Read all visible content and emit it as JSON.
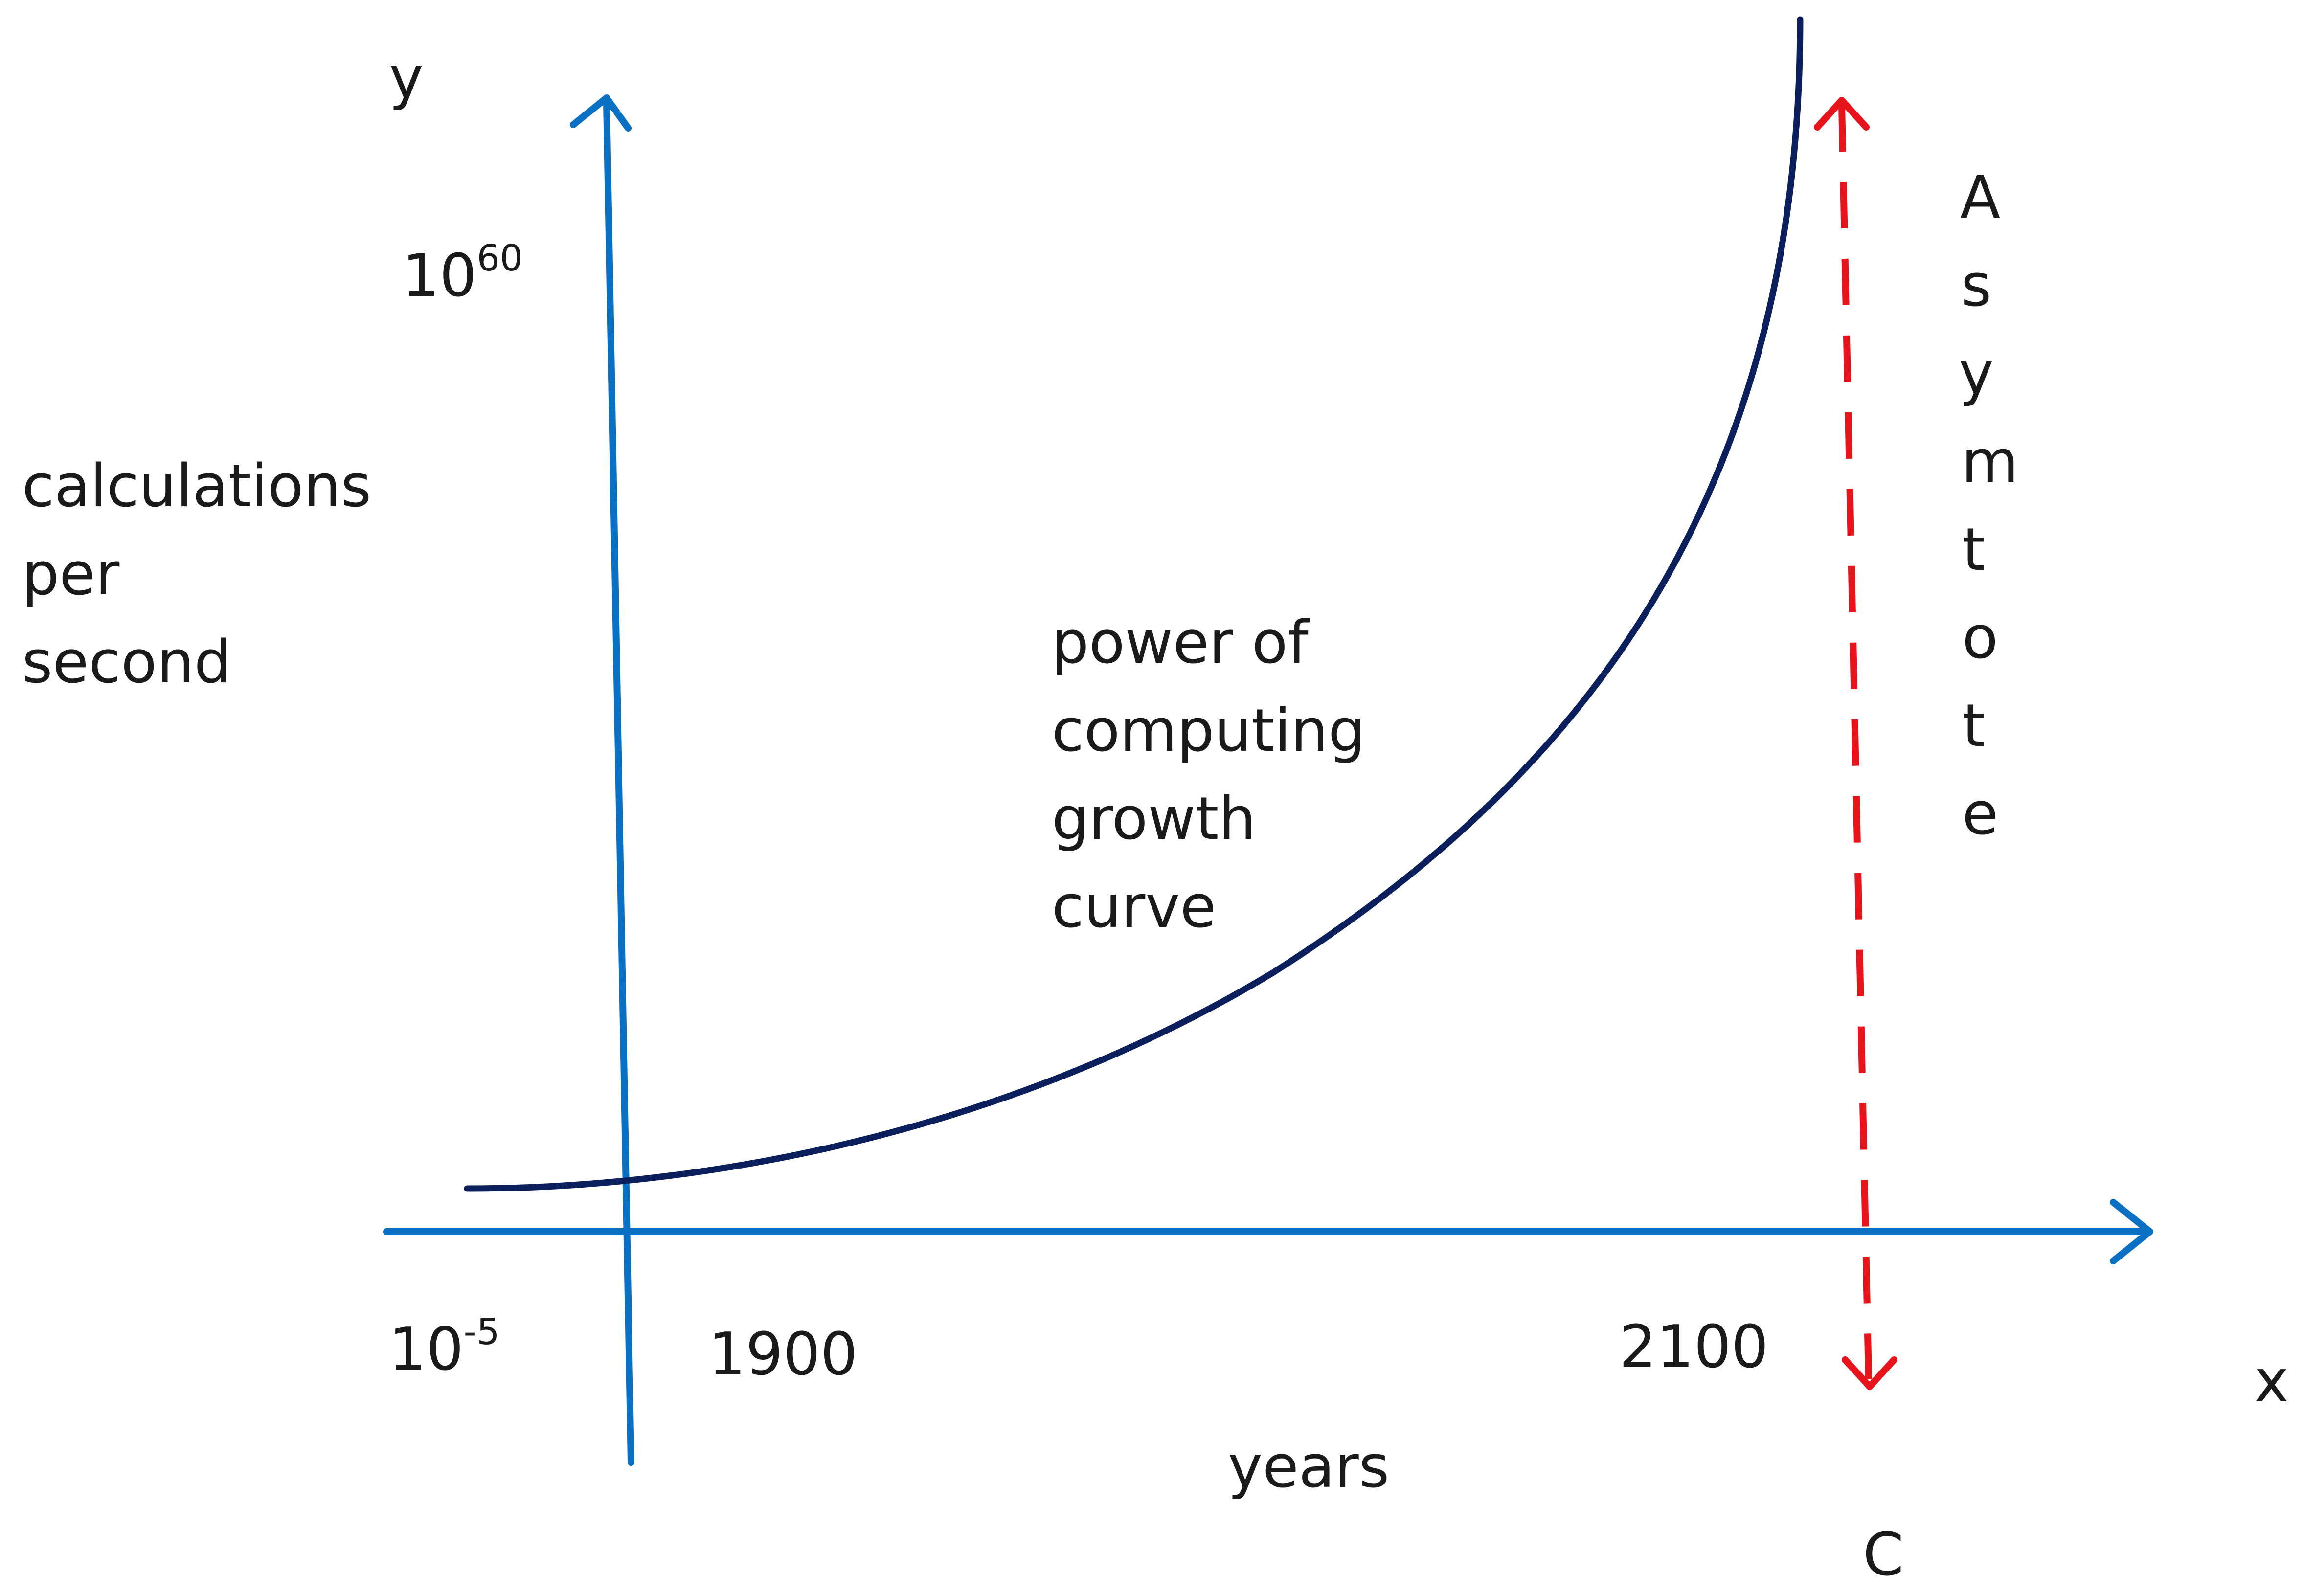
{
  "axes": {
    "y_axis_name": "y",
    "x_axis_name": "x",
    "y_label_lines": [
      "calculations",
      "per",
      "second"
    ],
    "x_label": "years",
    "y_top_tick": {
      "base": "10",
      "exponent": "60"
    },
    "origin_tick": {
      "base": "10",
      "exponent": "-5"
    },
    "x_tick_start": "1900",
    "x_tick_end": "2100"
  },
  "curve": {
    "label_lines": [
      "power of",
      "computing",
      "growth",
      "curve"
    ]
  },
  "asymptote": {
    "letters": [
      "A",
      "s",
      "y",
      "m",
      "t",
      "o",
      "t",
      "e"
    ],
    "marker": "C"
  },
  "colors": {
    "axis": "#0a70c4",
    "curve": "#0b1f5c",
    "asymptote": "#e8141b",
    "text": "#1a1a1a"
  }
}
